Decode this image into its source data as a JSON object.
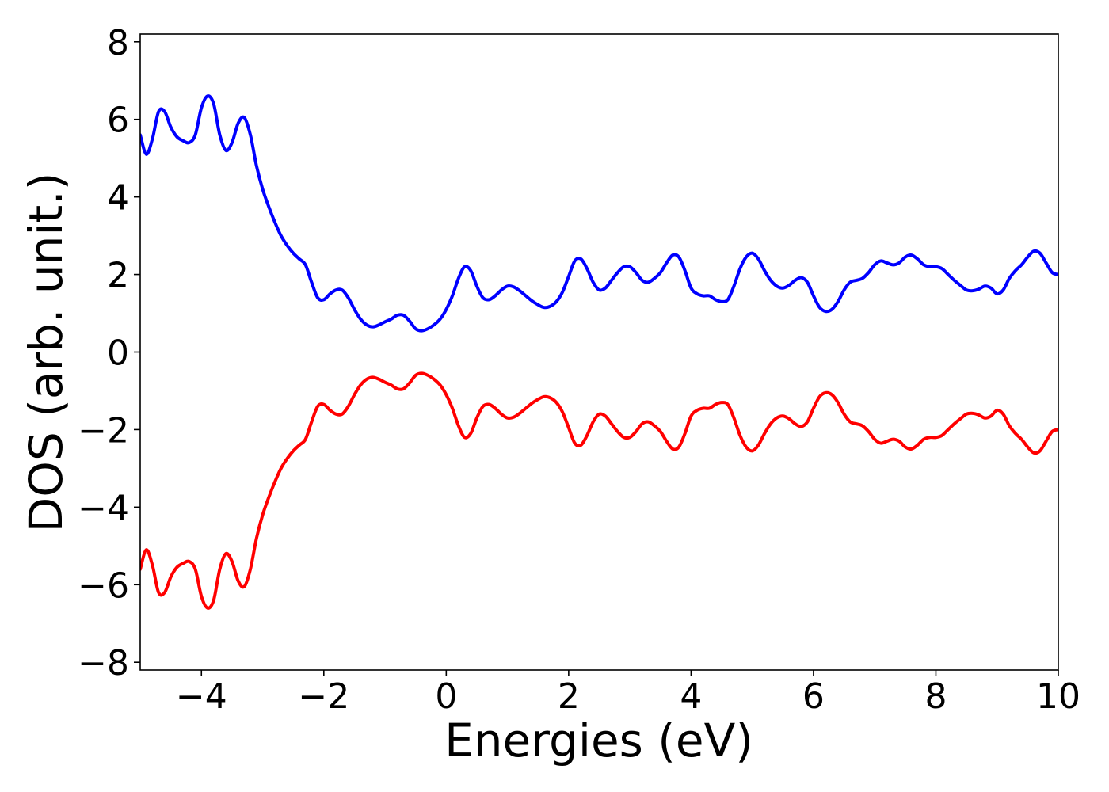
{
  "chart_data": {
    "type": "line",
    "xlabel": "Energies (eV)",
    "ylabel": "DOS (arb. unit.)",
    "xlim": [
      -5,
      10
    ],
    "ylim": [
      -8.2,
      8.2
    ],
    "xticks": [
      -4,
      -2,
      0,
      2,
      4,
      6,
      8,
      10
    ],
    "yticks": [
      -8,
      -6,
      -4,
      -2,
      0,
      2,
      4,
      6,
      8
    ],
    "xtick_labels": [
      "−4",
      "−2",
      "0",
      "2",
      "4",
      "6",
      "8",
      "10"
    ],
    "ytick_labels": [
      "−8",
      "−6",
      "−4",
      "−2",
      "0",
      "2",
      "4",
      "6",
      "8"
    ],
    "grid": false,
    "legend": "none",
    "series": [
      {
        "color": "#0000ff",
        "points": [
          [
            -5.0,
            5.6
          ],
          [
            -4.9,
            5.1
          ],
          [
            -4.8,
            5.5
          ],
          [
            -4.7,
            6.2
          ],
          [
            -4.6,
            6.2
          ],
          [
            -4.5,
            5.8
          ],
          [
            -4.4,
            5.55
          ],
          [
            -4.3,
            5.45
          ],
          [
            -4.2,
            5.4
          ],
          [
            -4.1,
            5.6
          ],
          [
            -4.0,
            6.3
          ],
          [
            -3.9,
            6.6
          ],
          [
            -3.8,
            6.4
          ],
          [
            -3.7,
            5.6
          ],
          [
            -3.6,
            5.2
          ],
          [
            -3.5,
            5.4
          ],
          [
            -3.4,
            5.9
          ],
          [
            -3.3,
            6.05
          ],
          [
            -3.2,
            5.6
          ],
          [
            -3.1,
            4.8
          ],
          [
            -3.0,
            4.2
          ],
          [
            -2.9,
            3.75
          ],
          [
            -2.8,
            3.35
          ],
          [
            -2.7,
            3.0
          ],
          [
            -2.6,
            2.75
          ],
          [
            -2.5,
            2.55
          ],
          [
            -2.4,
            2.4
          ],
          [
            -2.3,
            2.25
          ],
          [
            -2.2,
            1.8
          ],
          [
            -2.1,
            1.4
          ],
          [
            -2.0,
            1.35
          ],
          [
            -1.9,
            1.5
          ],
          [
            -1.8,
            1.6
          ],
          [
            -1.7,
            1.6
          ],
          [
            -1.6,
            1.4
          ],
          [
            -1.5,
            1.1
          ],
          [
            -1.4,
            0.85
          ],
          [
            -1.3,
            0.7
          ],
          [
            -1.2,
            0.65
          ],
          [
            -1.1,
            0.7
          ],
          [
            -1.0,
            0.78
          ],
          [
            -0.9,
            0.85
          ],
          [
            -0.8,
            0.95
          ],
          [
            -0.7,
            0.95
          ],
          [
            -0.6,
            0.8
          ],
          [
            -0.5,
            0.6
          ],
          [
            -0.4,
            0.55
          ],
          [
            -0.3,
            0.6
          ],
          [
            -0.2,
            0.7
          ],
          [
            -0.1,
            0.85
          ],
          [
            0.0,
            1.1
          ],
          [
            0.1,
            1.45
          ],
          [
            0.2,
            1.9
          ],
          [
            0.3,
            2.2
          ],
          [
            0.4,
            2.1
          ],
          [
            0.5,
            1.7
          ],
          [
            0.6,
            1.4
          ],
          [
            0.7,
            1.35
          ],
          [
            0.8,
            1.45
          ],
          [
            0.9,
            1.6
          ],
          [
            1.0,
            1.7
          ],
          [
            1.1,
            1.68
          ],
          [
            1.2,
            1.58
          ],
          [
            1.3,
            1.45
          ],
          [
            1.4,
            1.32
          ],
          [
            1.5,
            1.22
          ],
          [
            1.6,
            1.15
          ],
          [
            1.7,
            1.18
          ],
          [
            1.8,
            1.3
          ],
          [
            1.9,
            1.55
          ],
          [
            2.0,
            1.95
          ],
          [
            2.1,
            2.35
          ],
          [
            2.2,
            2.4
          ],
          [
            2.3,
            2.15
          ],
          [
            2.4,
            1.8
          ],
          [
            2.5,
            1.6
          ],
          [
            2.6,
            1.65
          ],
          [
            2.7,
            1.85
          ],
          [
            2.8,
            2.05
          ],
          [
            2.9,
            2.2
          ],
          [
            3.0,
            2.2
          ],
          [
            3.1,
            2.05
          ],
          [
            3.2,
            1.85
          ],
          [
            3.3,
            1.8
          ],
          [
            3.4,
            1.9
          ],
          [
            3.5,
            2.05
          ],
          [
            3.6,
            2.3
          ],
          [
            3.7,
            2.5
          ],
          [
            3.8,
            2.45
          ],
          [
            3.9,
            2.1
          ],
          [
            4.0,
            1.65
          ],
          [
            4.1,
            1.5
          ],
          [
            4.2,
            1.45
          ],
          [
            4.3,
            1.45
          ],
          [
            4.4,
            1.35
          ],
          [
            4.5,
            1.3
          ],
          [
            4.6,
            1.35
          ],
          [
            4.7,
            1.7
          ],
          [
            4.8,
            2.15
          ],
          [
            4.9,
            2.45
          ],
          [
            5.0,
            2.55
          ],
          [
            5.1,
            2.4
          ],
          [
            5.2,
            2.1
          ],
          [
            5.3,
            1.85
          ],
          [
            5.4,
            1.7
          ],
          [
            5.5,
            1.65
          ],
          [
            5.6,
            1.72
          ],
          [
            5.7,
            1.85
          ],
          [
            5.8,
            1.92
          ],
          [
            5.9,
            1.8
          ],
          [
            6.0,
            1.45
          ],
          [
            6.1,
            1.15
          ],
          [
            6.2,
            1.05
          ],
          [
            6.3,
            1.1
          ],
          [
            6.4,
            1.3
          ],
          [
            6.5,
            1.6
          ],
          [
            6.6,
            1.8
          ],
          [
            6.7,
            1.85
          ],
          [
            6.8,
            1.9
          ],
          [
            6.9,
            2.05
          ],
          [
            7.0,
            2.25
          ],
          [
            7.1,
            2.35
          ],
          [
            7.2,
            2.3
          ],
          [
            7.3,
            2.25
          ],
          [
            7.4,
            2.3
          ],
          [
            7.5,
            2.45
          ],
          [
            7.6,
            2.5
          ],
          [
            7.7,
            2.4
          ],
          [
            7.8,
            2.25
          ],
          [
            7.9,
            2.2
          ],
          [
            8.0,
            2.2
          ],
          [
            8.1,
            2.15
          ],
          [
            8.2,
            2.0
          ],
          [
            8.3,
            1.85
          ],
          [
            8.4,
            1.72
          ],
          [
            8.5,
            1.6
          ],
          [
            8.6,
            1.58
          ],
          [
            8.7,
            1.62
          ],
          [
            8.8,
            1.7
          ],
          [
            8.9,
            1.65
          ],
          [
            9.0,
            1.5
          ],
          [
            9.1,
            1.6
          ],
          [
            9.2,
            1.9
          ],
          [
            9.3,
            2.1
          ],
          [
            9.4,
            2.25
          ],
          [
            9.5,
            2.45
          ],
          [
            9.6,
            2.6
          ],
          [
            9.7,
            2.55
          ],
          [
            9.8,
            2.3
          ],
          [
            9.9,
            2.05
          ],
          [
            10.0,
            2.0
          ]
        ]
      },
      {
        "color": "#ff0000",
        "points": [
          [
            -5.0,
            -5.6
          ],
          [
            -4.9,
            -5.1
          ],
          [
            -4.8,
            -5.5
          ],
          [
            -4.7,
            -6.2
          ],
          [
            -4.6,
            -6.2
          ],
          [
            -4.5,
            -5.8
          ],
          [
            -4.4,
            -5.55
          ],
          [
            -4.3,
            -5.45
          ],
          [
            -4.2,
            -5.4
          ],
          [
            -4.1,
            -5.6
          ],
          [
            -4.0,
            -6.3
          ],
          [
            -3.9,
            -6.6
          ],
          [
            -3.8,
            -6.4
          ],
          [
            -3.7,
            -5.6
          ],
          [
            -3.6,
            -5.2
          ],
          [
            -3.5,
            -5.4
          ],
          [
            -3.4,
            -5.9
          ],
          [
            -3.3,
            -6.05
          ],
          [
            -3.2,
            -5.6
          ],
          [
            -3.1,
            -4.8
          ],
          [
            -3.0,
            -4.2
          ],
          [
            -2.9,
            -3.75
          ],
          [
            -2.8,
            -3.35
          ],
          [
            -2.7,
            -3.0
          ],
          [
            -2.6,
            -2.75
          ],
          [
            -2.5,
            -2.55
          ],
          [
            -2.4,
            -2.4
          ],
          [
            -2.3,
            -2.25
          ],
          [
            -2.2,
            -1.8
          ],
          [
            -2.1,
            -1.4
          ],
          [
            -2.0,
            -1.35
          ],
          [
            -1.9,
            -1.5
          ],
          [
            -1.8,
            -1.6
          ],
          [
            -1.7,
            -1.6
          ],
          [
            -1.6,
            -1.4
          ],
          [
            -1.5,
            -1.1
          ],
          [
            -1.4,
            -0.85
          ],
          [
            -1.3,
            -0.7
          ],
          [
            -1.2,
            -0.65
          ],
          [
            -1.1,
            -0.7
          ],
          [
            -1.0,
            -0.78
          ],
          [
            -0.9,
            -0.85
          ],
          [
            -0.8,
            -0.95
          ],
          [
            -0.7,
            -0.95
          ],
          [
            -0.6,
            -0.8
          ],
          [
            -0.5,
            -0.6
          ],
          [
            -0.4,
            -0.55
          ],
          [
            -0.3,
            -0.6
          ],
          [
            -0.2,
            -0.7
          ],
          [
            -0.1,
            -0.85
          ],
          [
            0.0,
            -1.1
          ],
          [
            0.1,
            -1.45
          ],
          [
            0.2,
            -1.9
          ],
          [
            0.3,
            -2.2
          ],
          [
            0.4,
            -2.1
          ],
          [
            0.5,
            -1.7
          ],
          [
            0.6,
            -1.4
          ],
          [
            0.7,
            -1.35
          ],
          [
            0.8,
            -1.45
          ],
          [
            0.9,
            -1.6
          ],
          [
            1.0,
            -1.7
          ],
          [
            1.1,
            -1.68
          ],
          [
            1.2,
            -1.58
          ],
          [
            1.3,
            -1.45
          ],
          [
            1.4,
            -1.32
          ],
          [
            1.5,
            -1.22
          ],
          [
            1.6,
            -1.15
          ],
          [
            1.7,
            -1.18
          ],
          [
            1.8,
            -1.3
          ],
          [
            1.9,
            -1.55
          ],
          [
            2.0,
            -1.95
          ],
          [
            2.1,
            -2.35
          ],
          [
            2.2,
            -2.4
          ],
          [
            2.3,
            -2.15
          ],
          [
            2.4,
            -1.8
          ],
          [
            2.5,
            -1.6
          ],
          [
            2.6,
            -1.65
          ],
          [
            2.7,
            -1.85
          ],
          [
            2.8,
            -2.05
          ],
          [
            2.9,
            -2.2
          ],
          [
            3.0,
            -2.2
          ],
          [
            3.1,
            -2.05
          ],
          [
            3.2,
            -1.85
          ],
          [
            3.3,
            -1.8
          ],
          [
            3.4,
            -1.9
          ],
          [
            3.5,
            -2.05
          ],
          [
            3.6,
            -2.3
          ],
          [
            3.7,
            -2.5
          ],
          [
            3.8,
            -2.45
          ],
          [
            3.9,
            -2.1
          ],
          [
            4.0,
            -1.65
          ],
          [
            4.1,
            -1.5
          ],
          [
            4.2,
            -1.45
          ],
          [
            4.3,
            -1.45
          ],
          [
            4.4,
            -1.35
          ],
          [
            4.5,
            -1.3
          ],
          [
            4.6,
            -1.35
          ],
          [
            4.7,
            -1.7
          ],
          [
            4.8,
            -2.15
          ],
          [
            4.9,
            -2.45
          ],
          [
            5.0,
            -2.55
          ],
          [
            5.1,
            -2.4
          ],
          [
            5.2,
            -2.1
          ],
          [
            5.3,
            -1.85
          ],
          [
            5.4,
            -1.7
          ],
          [
            5.5,
            -1.65
          ],
          [
            5.6,
            -1.72
          ],
          [
            5.7,
            -1.85
          ],
          [
            5.8,
            -1.92
          ],
          [
            5.9,
            -1.8
          ],
          [
            6.0,
            -1.45
          ],
          [
            6.1,
            -1.15
          ],
          [
            6.2,
            -1.05
          ],
          [
            6.3,
            -1.1
          ],
          [
            6.4,
            -1.3
          ],
          [
            6.5,
            -1.6
          ],
          [
            6.6,
            -1.8
          ],
          [
            6.7,
            -1.85
          ],
          [
            6.8,
            -1.9
          ],
          [
            6.9,
            -2.05
          ],
          [
            7.0,
            -2.25
          ],
          [
            7.1,
            -2.35
          ],
          [
            7.2,
            -2.3
          ],
          [
            7.3,
            -2.25
          ],
          [
            7.4,
            -2.3
          ],
          [
            7.5,
            -2.45
          ],
          [
            7.6,
            -2.5
          ],
          [
            7.7,
            -2.4
          ],
          [
            7.8,
            -2.25
          ],
          [
            7.9,
            -2.2
          ],
          [
            8.0,
            -2.2
          ],
          [
            8.1,
            -2.15
          ],
          [
            8.2,
            -2.0
          ],
          [
            8.3,
            -1.85
          ],
          [
            8.4,
            -1.72
          ],
          [
            8.5,
            -1.6
          ],
          [
            8.6,
            -1.58
          ],
          [
            8.7,
            -1.62
          ],
          [
            8.8,
            -1.7
          ],
          [
            8.9,
            -1.65
          ],
          [
            9.0,
            -1.5
          ],
          [
            9.1,
            -1.6
          ],
          [
            9.2,
            -1.9
          ],
          [
            9.3,
            -2.1
          ],
          [
            9.4,
            -2.25
          ],
          [
            9.5,
            -2.45
          ],
          [
            9.6,
            -2.6
          ],
          [
            9.7,
            -2.55
          ],
          [
            9.8,
            -2.3
          ],
          [
            9.9,
            -2.05
          ],
          [
            10.0,
            -2.0
          ]
        ]
      }
    ]
  }
}
